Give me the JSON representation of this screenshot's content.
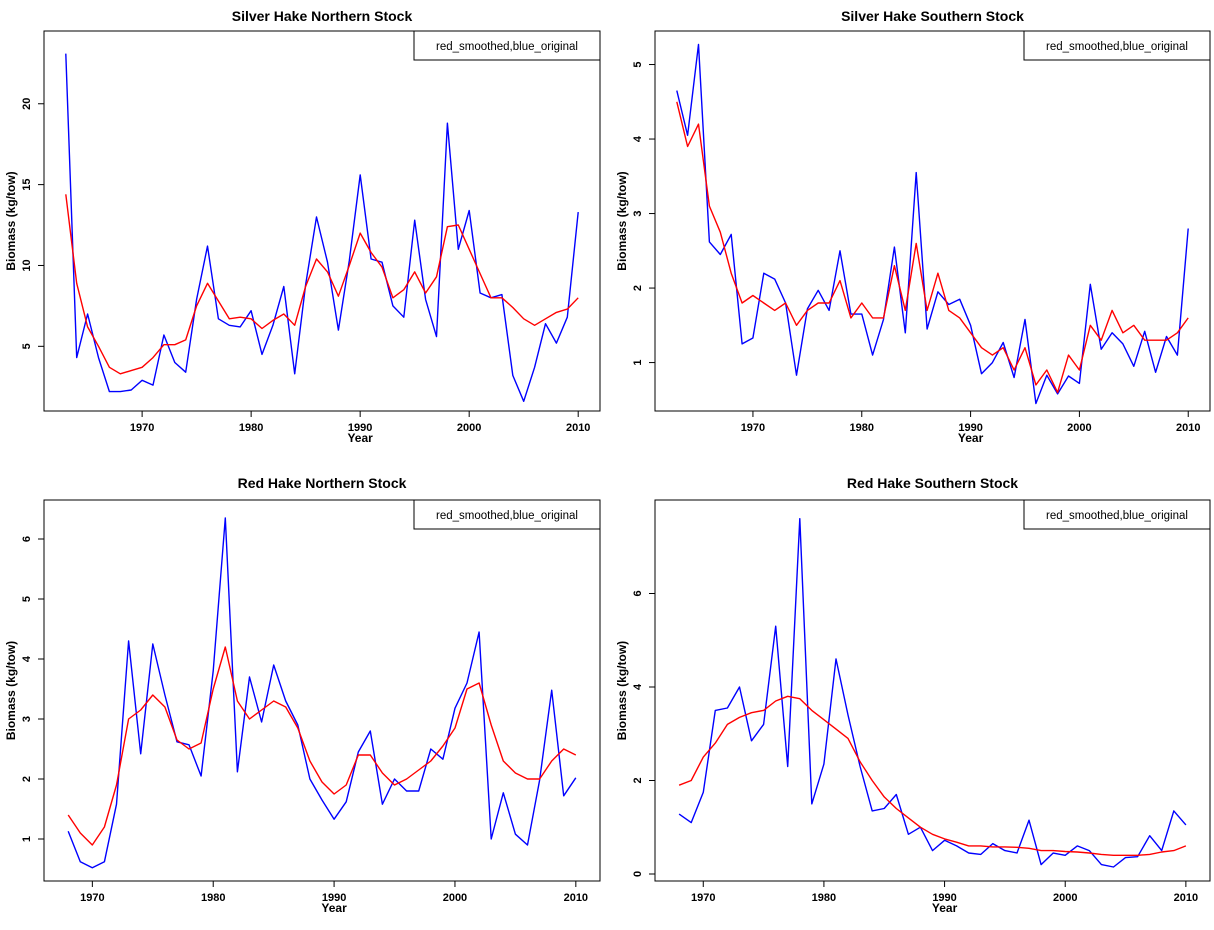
{
  "chart_data": [
    {
      "type": "line",
      "title": "Silver Hake Northern Stock",
      "xlabel": "Year",
      "ylabel": "Biomass (kg/tow)",
      "legend": {
        "text": "red_smoothed,blue_original",
        "position": "top-right"
      },
      "xlim": [
        1961,
        2012
      ],
      "ylim": [
        1.0,
        24.5
      ],
      "xticks": [
        1970,
        1980,
        1990,
        2000,
        2010
      ],
      "yticks": [
        5,
        10,
        15,
        20
      ],
      "x": [
        1963,
        1964,
        1965,
        1966,
        1967,
        1968,
        1969,
        1970,
        1971,
        1972,
        1973,
        1974,
        1975,
        1976,
        1977,
        1978,
        1979,
        1980,
        1981,
        1982,
        1983,
        1984,
        1985,
        1986,
        1987,
        1988,
        1989,
        1990,
        1991,
        1992,
        1993,
        1994,
        1995,
        1996,
        1997,
        1998,
        1999,
        2000,
        2001,
        2002,
        2003,
        2004,
        2005,
        2006,
        2007,
        2008,
        2009,
        2010
      ],
      "series": [
        {
          "name": "original",
          "color": "#0000ff",
          "values": [
            23.1,
            4.3,
            7.0,
            4.3,
            2.2,
            2.2,
            2.3,
            2.9,
            2.6,
            5.7,
            4.0,
            3.4,
            7.9,
            11.2,
            6.7,
            6.3,
            6.2,
            7.2,
            4.5,
            6.3,
            8.7,
            3.3,
            8.8,
            13.0,
            10.2,
            6.0,
            10.3,
            15.6,
            10.4,
            10.2,
            7.5,
            6.8,
            12.8,
            7.9,
            5.6,
            18.8,
            11.0,
            13.4,
            8.3,
            8.0,
            8.2,
            3.2,
            1.6,
            3.7,
            6.4,
            5.2,
            6.8,
            13.3
          ]
        },
        {
          "name": "smoothed",
          "color": "#ff0000",
          "values": [
            14.4,
            8.9,
            6.2,
            5.0,
            3.7,
            3.3,
            3.5,
            3.7,
            4.3,
            5.1,
            5.1,
            5.4,
            7.5,
            8.9,
            7.8,
            6.7,
            6.8,
            6.7,
            6.1,
            6.6,
            7.0,
            6.3,
            8.7,
            10.4,
            9.6,
            8.1,
            10.0,
            12.0,
            10.8,
            9.9,
            8.0,
            8.5,
            9.6,
            8.3,
            9.3,
            12.4,
            12.5,
            11.0,
            9.5,
            8.0,
            8.0,
            7.4,
            6.7,
            6.3,
            6.7,
            7.1,
            7.3,
            8.0
          ]
        }
      ]
    },
    {
      "type": "line",
      "title": "Silver Hake Southern Stock",
      "xlabel": "Year",
      "ylabel": "Biomass (kg/tow)",
      "legend": {
        "text": "red_smoothed,blue_original",
        "position": "top-right"
      },
      "xlim": [
        1961,
        2012
      ],
      "ylim": [
        0.35,
        5.45
      ],
      "xticks": [
        1970,
        1980,
        1990,
        2000,
        2010
      ],
      "yticks": [
        1,
        2,
        3,
        4,
        5
      ],
      "x": [
        1963,
        1964,
        1965,
        1966,
        1967,
        1968,
        1969,
        1970,
        1971,
        1972,
        1973,
        1974,
        1975,
        1976,
        1977,
        1978,
        1979,
        1980,
        1981,
        1982,
        1983,
        1984,
        1985,
        1986,
        1987,
        1988,
        1989,
        1990,
        1991,
        1992,
        1993,
        1994,
        1995,
        1996,
        1997,
        1998,
        1999,
        2000,
        2001,
        2002,
        2003,
        2004,
        2005,
        2006,
        2007,
        2008,
        2009,
        2010
      ],
      "series": [
        {
          "name": "original",
          "color": "#0000ff",
          "values": [
            4.65,
            4.05,
            5.27,
            2.62,
            2.45,
            2.72,
            1.25,
            1.33,
            2.2,
            2.12,
            1.8,
            0.83,
            1.72,
            1.97,
            1.7,
            2.5,
            1.65,
            1.65,
            1.1,
            1.58,
            2.55,
            1.4,
            3.55,
            1.45,
            1.95,
            1.78,
            1.85,
            1.5,
            0.85,
            1.0,
            1.27,
            0.8,
            1.58,
            0.45,
            0.83,
            0.58,
            0.82,
            0.72,
            2.05,
            1.18,
            1.4,
            1.25,
            0.95,
            1.42,
            0.87,
            1.35,
            1.1,
            2.8
          ]
        },
        {
          "name": "smoothed",
          "color": "#ff0000",
          "values": [
            4.5,
            3.9,
            4.2,
            3.1,
            2.75,
            2.2,
            1.8,
            1.9,
            1.8,
            1.7,
            1.8,
            1.5,
            1.7,
            1.8,
            1.8,
            2.1,
            1.6,
            1.8,
            1.6,
            1.6,
            2.3,
            1.7,
            2.6,
            1.7,
            2.2,
            1.7,
            1.6,
            1.4,
            1.2,
            1.1,
            1.2,
            0.9,
            1.2,
            0.7,
            0.9,
            0.6,
            1.1,
            0.9,
            1.5,
            1.3,
            1.7,
            1.4,
            1.5,
            1.3,
            1.3,
            1.3,
            1.4,
            1.6
          ]
        }
      ]
    },
    {
      "type": "line",
      "title": "Red Hake Northern Stock",
      "xlabel": "Year",
      "ylabel": "Biomass (kg/tow)",
      "legend": {
        "text": "red_smoothed,blue_original",
        "position": "top-right"
      },
      "xlim": [
        1966,
        2012
      ],
      "ylim": [
        0.3,
        6.65
      ],
      "xticks": [
        1970,
        1980,
        1990,
        2000,
        2010
      ],
      "yticks": [
        1,
        2,
        3,
        4,
        5,
        6
      ],
      "x": [
        1968,
        1969,
        1970,
        1971,
        1972,
        1973,
        1974,
        1975,
        1976,
        1977,
        1978,
        1979,
        1980,
        1981,
        1982,
        1983,
        1984,
        1985,
        1986,
        1987,
        1988,
        1989,
        1990,
        1991,
        1992,
        1993,
        1994,
        1995,
        1996,
        1997,
        1998,
        1999,
        2000,
        2001,
        2002,
        2003,
        2004,
        2005,
        2006,
        2007,
        2008,
        2009,
        2010
      ],
      "series": [
        {
          "name": "original",
          "color": "#0000ff",
          "values": [
            1.13,
            0.62,
            0.52,
            0.62,
            1.58,
            4.3,
            2.42,
            4.25,
            3.4,
            2.62,
            2.57,
            2.05,
            3.8,
            6.35,
            2.12,
            3.7,
            2.95,
            3.9,
            3.3,
            2.9,
            2.0,
            1.65,
            1.33,
            1.62,
            2.45,
            2.8,
            1.58,
            2.0,
            1.8,
            1.8,
            2.5,
            2.33,
            3.18,
            3.6,
            4.45,
            1.0,
            1.77,
            1.08,
            0.9,
            1.98,
            3.48,
            1.72,
            2.02
          ]
        },
        {
          "name": "smoothed",
          "color": "#ff0000",
          "values": [
            1.4,
            1.1,
            0.9,
            1.2,
            1.9,
            3.0,
            3.15,
            3.4,
            3.2,
            2.65,
            2.5,
            2.6,
            3.5,
            4.2,
            3.3,
            3.0,
            3.15,
            3.3,
            3.2,
            2.85,
            2.3,
            1.95,
            1.75,
            1.9,
            2.4,
            2.4,
            2.1,
            1.9,
            2.0,
            2.15,
            2.3,
            2.55,
            2.85,
            3.5,
            3.6,
            2.9,
            2.3,
            2.1,
            2.0,
            2.0,
            2.3,
            2.5,
            2.4
          ]
        }
      ]
    },
    {
      "type": "line",
      "title": "Red Hake Southern Stock",
      "xlabel": "Year",
      "ylabel": "Biomass (kg/tow)",
      "legend": {
        "text": "red_smoothed,blue_original",
        "position": "top-right"
      },
      "xlim": [
        1966,
        2012
      ],
      "ylim": [
        -0.15,
        8.0
      ],
      "xticks": [
        1970,
        1980,
        1990,
        2000,
        2010
      ],
      "yticks": [
        0,
        2,
        4,
        6
      ],
      "x": [
        1968,
        1969,
        1970,
        1971,
        1972,
        1973,
        1974,
        1975,
        1976,
        1977,
        1978,
        1979,
        1980,
        1981,
        1982,
        1983,
        1984,
        1985,
        1986,
        1987,
        1988,
        1989,
        1990,
        1991,
        1992,
        1993,
        1994,
        1995,
        1996,
        1997,
        1998,
        1999,
        2000,
        2001,
        2002,
        2003,
        2004,
        2005,
        2006,
        2007,
        2008,
        2009,
        2010
      ],
      "series": [
        {
          "name": "original",
          "color": "#0000ff",
          "values": [
            1.28,
            1.1,
            1.75,
            3.5,
            3.55,
            4.0,
            2.85,
            3.2,
            5.3,
            2.3,
            7.6,
            1.5,
            2.35,
            4.6,
            3.4,
            2.3,
            1.35,
            1.4,
            1.7,
            0.85,
            1.0,
            0.5,
            0.72,
            0.6,
            0.45,
            0.42,
            0.65,
            0.5,
            0.45,
            1.15,
            0.2,
            0.45,
            0.4,
            0.6,
            0.5,
            0.2,
            0.15,
            0.35,
            0.37,
            0.82,
            0.5,
            1.35,
            1.05
          ]
        },
        {
          "name": "smoothed",
          "color": "#ff0000",
          "values": [
            1.9,
            2.0,
            2.5,
            2.8,
            3.2,
            3.35,
            3.45,
            3.5,
            3.7,
            3.8,
            3.75,
            3.5,
            3.3,
            3.1,
            2.9,
            2.4,
            2.0,
            1.65,
            1.4,
            1.2,
            1.0,
            0.85,
            0.75,
            0.68,
            0.6,
            0.6,
            0.58,
            0.58,
            0.57,
            0.55,
            0.5,
            0.5,
            0.48,
            0.47,
            0.45,
            0.42,
            0.4,
            0.4,
            0.4,
            0.42,
            0.47,
            0.5,
            0.6
          ]
        }
      ]
    }
  ]
}
